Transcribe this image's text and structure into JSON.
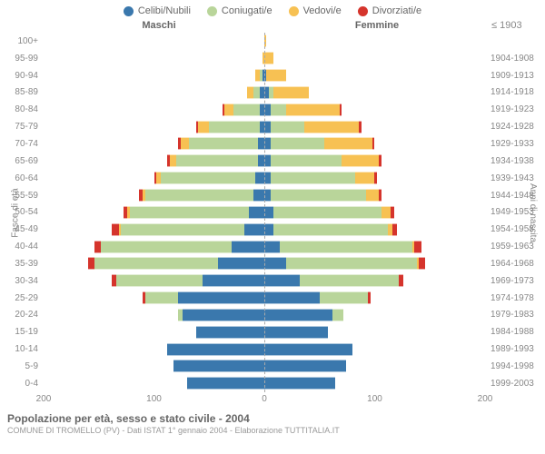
{
  "legend": [
    {
      "label": "Celibi/Nubili",
      "color": "#3a78ad"
    },
    {
      "label": "Coniugati/e",
      "color": "#b9d59a"
    },
    {
      "label": "Vedovi/e",
      "color": "#f7c153"
    },
    {
      "label": "Divorziati/e",
      "color": "#d5342c"
    }
  ],
  "header": {
    "male": "Maschi",
    "female": "Femmine",
    "birth_first": "≤ 1903"
  },
  "axis": {
    "left_label": "Fasce di età",
    "right_label": "Anni di nascita",
    "x_ticks": [
      200,
      100,
      0,
      100,
      200
    ],
    "x_max": 200
  },
  "colors": {
    "single": "#3a78ad",
    "married": "#b9d59a",
    "widowed": "#f7c153",
    "divorced": "#d5342c"
  },
  "footer": {
    "title": "Popolazione per età, sesso e stato civile - 2004",
    "sub": "COMUNE DI TROMELLO (PV) - Dati ISTAT 1° gennaio 2004 - Elaborazione TUTTITALIA.IT"
  },
  "rows": [
    {
      "age": "100+",
      "birth": "≤ 1903",
      "m": {
        "s": 0,
        "c": 0,
        "w": 0,
        "d": 0
      },
      "f": {
        "s": 0,
        "c": 0,
        "w": 2,
        "d": 0
      }
    },
    {
      "age": "95-99",
      "birth": "1904-1908",
      "m": {
        "s": 0,
        "c": 0,
        "w": 2,
        "d": 0
      },
      "f": {
        "s": 0,
        "c": 0,
        "w": 8,
        "d": 0
      }
    },
    {
      "age": "90-94",
      "birth": "1909-1913",
      "m": {
        "s": 2,
        "c": 2,
        "w": 4,
        "d": 0
      },
      "f": {
        "s": 2,
        "c": 0,
        "w": 18,
        "d": 0
      }
    },
    {
      "age": "85-89",
      "birth": "1914-1918",
      "m": {
        "s": 4,
        "c": 6,
        "w": 6,
        "d": 0
      },
      "f": {
        "s": 4,
        "c": 4,
        "w": 32,
        "d": 0
      }
    },
    {
      "age": "80-84",
      "birth": "1919-1923",
      "m": {
        "s": 4,
        "c": 24,
        "w": 8,
        "d": 2
      },
      "f": {
        "s": 6,
        "c": 14,
        "w": 48,
        "d": 2
      }
    },
    {
      "age": "75-79",
      "birth": "1924-1928",
      "m": {
        "s": 4,
        "c": 46,
        "w": 10,
        "d": 2
      },
      "f": {
        "s": 6,
        "c": 30,
        "w": 50,
        "d": 2
      }
    },
    {
      "age": "70-74",
      "birth": "1929-1933",
      "m": {
        "s": 6,
        "c": 62,
        "w": 8,
        "d": 2
      },
      "f": {
        "s": 6,
        "c": 48,
        "w": 44,
        "d": 2
      }
    },
    {
      "age": "65-69",
      "birth": "1934-1938",
      "m": {
        "s": 6,
        "c": 74,
        "w": 6,
        "d": 2
      },
      "f": {
        "s": 6,
        "c": 64,
        "w": 34,
        "d": 2
      }
    },
    {
      "age": "60-64",
      "birth": "1939-1943",
      "m": {
        "s": 8,
        "c": 86,
        "w": 4,
        "d": 2
      },
      "f": {
        "s": 6,
        "c": 76,
        "w": 18,
        "d": 2
      }
    },
    {
      "age": "55-59",
      "birth": "1944-1948",
      "m": {
        "s": 10,
        "c": 98,
        "w": 2,
        "d": 4
      },
      "f": {
        "s": 6,
        "c": 86,
        "w": 12,
        "d": 2
      }
    },
    {
      "age": "50-54",
      "birth": "1949-1953",
      "m": {
        "s": 14,
        "c": 108,
        "w": 2,
        "d": 4
      },
      "f": {
        "s": 8,
        "c": 98,
        "w": 8,
        "d": 4
      }
    },
    {
      "age": "45-49",
      "birth": "1954-1958",
      "m": {
        "s": 18,
        "c": 112,
        "w": 2,
        "d": 6
      },
      "f": {
        "s": 8,
        "c": 104,
        "w": 4,
        "d": 4
      }
    },
    {
      "age": "40-44",
      "birth": "1959-1963",
      "m": {
        "s": 30,
        "c": 118,
        "w": 0,
        "d": 6
      },
      "f": {
        "s": 14,
        "c": 120,
        "w": 2,
        "d": 6
      }
    },
    {
      "age": "35-39",
      "birth": "1964-1968",
      "m": {
        "s": 42,
        "c": 112,
        "w": 0,
        "d": 6
      },
      "f": {
        "s": 20,
        "c": 118,
        "w": 2,
        "d": 6
      }
    },
    {
      "age": "30-34",
      "birth": "1969-1973",
      "m": {
        "s": 56,
        "c": 78,
        "w": 0,
        "d": 4
      },
      "f": {
        "s": 32,
        "c": 90,
        "w": 0,
        "d": 4
      }
    },
    {
      "age": "25-29",
      "birth": "1974-1978",
      "m": {
        "s": 78,
        "c": 30,
        "w": 0,
        "d": 2
      },
      "f": {
        "s": 50,
        "c": 44,
        "w": 0,
        "d": 2
      }
    },
    {
      "age": "20-24",
      "birth": "1979-1983",
      "m": {
        "s": 74,
        "c": 4,
        "w": 0,
        "d": 0
      },
      "f": {
        "s": 62,
        "c": 10,
        "w": 0,
        "d": 0
      }
    },
    {
      "age": "15-19",
      "birth": "1984-1988",
      "m": {
        "s": 62,
        "c": 0,
        "w": 0,
        "d": 0
      },
      "f": {
        "s": 58,
        "c": 0,
        "w": 0,
        "d": 0
      }
    },
    {
      "age": "10-14",
      "birth": "1989-1993",
      "m": {
        "s": 88,
        "c": 0,
        "w": 0,
        "d": 0
      },
      "f": {
        "s": 80,
        "c": 0,
        "w": 0,
        "d": 0
      }
    },
    {
      "age": "5-9",
      "birth": "1994-1998",
      "m": {
        "s": 82,
        "c": 0,
        "w": 0,
        "d": 0
      },
      "f": {
        "s": 74,
        "c": 0,
        "w": 0,
        "d": 0
      }
    },
    {
      "age": "0-4",
      "birth": "1999-2003",
      "m": {
        "s": 70,
        "c": 0,
        "w": 0,
        "d": 0
      },
      "f": {
        "s": 64,
        "c": 0,
        "w": 0,
        "d": 0
      }
    }
  ]
}
